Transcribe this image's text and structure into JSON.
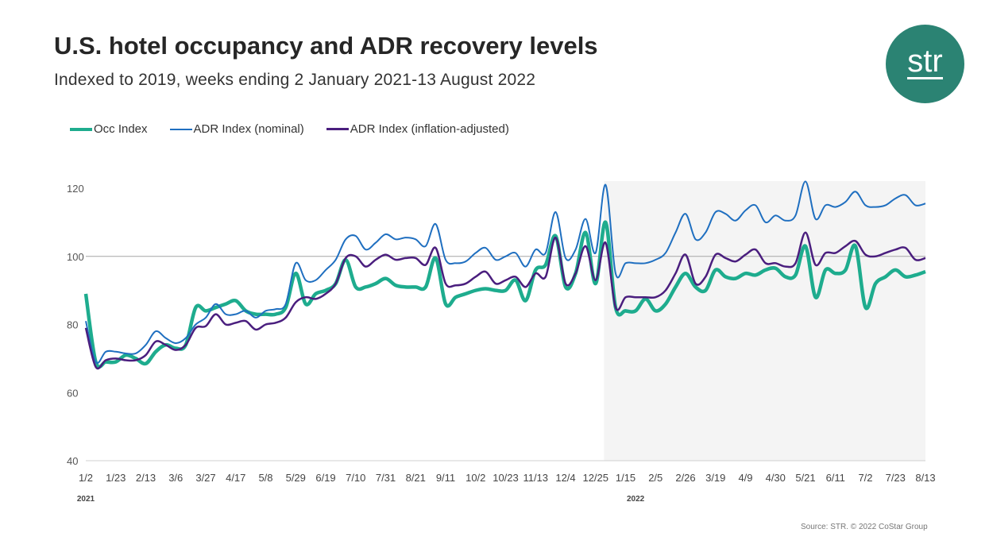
{
  "title": "U.S. hotel occupancy and ADR recovery levels",
  "subtitle": "Indexed to 2019, weeks ending 2 January 2021-13 August 2022",
  "source": "Source: STR. © 2022 CoStar Group",
  "logo_text": "str",
  "colors": {
    "occ": "#1eac8e",
    "adr_nominal": "#1f6fc0",
    "adr_inflation": "#4a1e7e",
    "logo": "#2b8373",
    "shade": "#f4f4f4"
  },
  "chart_data": {
    "type": "line",
    "title": "U.S. hotel occupancy and ADR recovery levels",
    "ylim": [
      40,
      120
    ],
    "yticks": [
      40,
      60,
      80,
      100,
      120
    ],
    "reference_line": 100,
    "grid": false,
    "legend_position": "top-left",
    "shaded_period": [
      "1/1",
      "8/13"
    ],
    "year_labels": [
      {
        "label": "2021",
        "at": "1/2"
      },
      {
        "label": "2022",
        "at_index": 55
      }
    ],
    "categories": [
      "1/2",
      "1/9",
      "1/16",
      "1/23",
      "1/30",
      "2/6",
      "2/13",
      "2/20",
      "2/27",
      "3/6",
      "3/13",
      "3/20",
      "3/27",
      "4/3",
      "4/10",
      "4/17",
      "4/24",
      "5/1",
      "5/8",
      "5/15",
      "5/22",
      "5/29",
      "6/5",
      "6/12",
      "6/19",
      "6/26",
      "7/3",
      "7/10",
      "7/17",
      "7/24",
      "7/31",
      "8/7",
      "8/14",
      "8/21",
      "8/28",
      "9/4",
      "9/11",
      "9/18",
      "9/25",
      "10/2",
      "10/9",
      "10/16",
      "10/23",
      "10/30",
      "11/6",
      "11/13",
      "11/20",
      "11/27",
      "12/4",
      "12/11",
      "12/18",
      "12/25",
      "1/1",
      "1/8",
      "1/15",
      "1/22",
      "1/29",
      "2/5",
      "2/12",
      "2/19",
      "2/26",
      "3/5",
      "3/12",
      "3/19",
      "3/26",
      "4/2",
      "4/9",
      "4/16",
      "4/23",
      "4/30",
      "5/7",
      "5/14",
      "5/21",
      "5/28",
      "6/4",
      "6/11",
      "6/18",
      "6/25",
      "7/2",
      "7/9",
      "7/16",
      "7/23",
      "7/30",
      "8/6",
      "8/13"
    ],
    "tick_labels": [
      "1/2",
      "1/23",
      "2/13",
      "3/6",
      "3/27",
      "4/17",
      "5/8",
      "5/29",
      "6/19",
      "7/10",
      "7/31",
      "8/21",
      "9/11",
      "10/2",
      "10/23",
      "11/13",
      "12/4",
      "12/25",
      "1/15",
      "2/5",
      "2/26",
      "3/19",
      "4/9",
      "4/30",
      "5/21",
      "6/11",
      "7/2",
      "7/23",
      "8/13"
    ],
    "series": [
      {
        "name": "Occ Index",
        "values": [
          89,
          69,
          69,
          69,
          71,
          70,
          68.5,
          72,
          74,
          73,
          74,
          85,
          84,
          85,
          86,
          87,
          84,
          83,
          83,
          83,
          85,
          95,
          86,
          89,
          90,
          92,
          99,
          91,
          91,
          92,
          93.5,
          91.5,
          91,
          91,
          91,
          99.5,
          86,
          88,
          89,
          90,
          90.5,
          90,
          90,
          93,
          87,
          96,
          97.5,
          106,
          91,
          95,
          107,
          92,
          110,
          85,
          84,
          84,
          87.5,
          84,
          86,
          91,
          95,
          91,
          90,
          96,
          94,
          93.5,
          95,
          94.5,
          96,
          96.5,
          94,
          94.5,
          103,
          88,
          96,
          95,
          96,
          103,
          85,
          92,
          94,
          96,
          94,
          94.5,
          95.5
        ]
      },
      {
        "name": "ADR Index (nominal)",
        "values": [
          81,
          69,
          72,
          72,
          71.5,
          71.5,
          74,
          78,
          76,
          74.5,
          76,
          80,
          82,
          86,
          83,
          83,
          84,
          82,
          84,
          84.5,
          86,
          98,
          93,
          93,
          96,
          99,
          105,
          106,
          102,
          104,
          106.5,
          105,
          105.5,
          105,
          103,
          109.5,
          99,
          98,
          98.5,
          101,
          102.5,
          99,
          100,
          101,
          97,
          102,
          101,
          113,
          99.5,
          102,
          111,
          101,
          121,
          95,
          98,
          98,
          98,
          99,
          101,
          107,
          112.5,
          105,
          107,
          113,
          112.5,
          110.5,
          113.5,
          115,
          110,
          112,
          110.5,
          112,
          122,
          111,
          115,
          114.5,
          116,
          119,
          115,
          114.5,
          115,
          117,
          118,
          115,
          115.5
        ]
      },
      {
        "name": "ADR Index (inflation-adjusted)",
        "values": [
          79,
          67.5,
          69.5,
          70,
          69.5,
          69.5,
          71,
          75,
          74,
          72.5,
          74,
          79,
          79.5,
          83,
          80,
          80.5,
          81,
          78.5,
          80,
          80.5,
          82,
          86.5,
          88,
          87.5,
          89,
          92,
          99.5,
          100,
          97,
          99,
          100.5,
          99,
          99.5,
          99.5,
          97.5,
          102.5,
          92,
          91.5,
          92,
          94,
          95.5,
          92,
          93,
          94,
          91,
          95,
          94,
          105.5,
          92,
          95,
          103,
          93,
          104,
          85,
          88,
          88,
          88,
          88,
          90,
          95,
          100.5,
          92,
          94,
          100.5,
          99.5,
          98.5,
          100.5,
          102,
          98,
          98,
          97,
          98,
          107,
          97.5,
          101,
          101,
          103,
          104.5,
          100.5,
          100,
          101,
          102,
          102.5,
          99,
          99.5
        ]
      }
    ]
  }
}
